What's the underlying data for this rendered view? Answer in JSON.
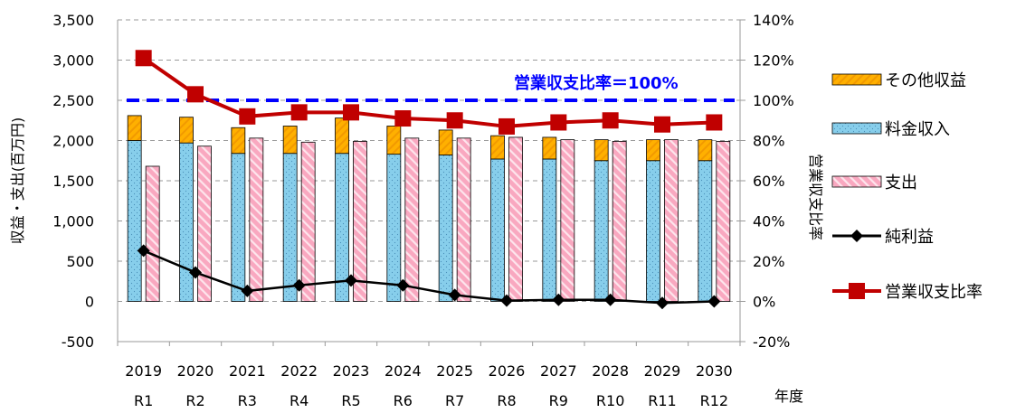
{
  "chart_data": {
    "type": "bar",
    "categories": [
      "2019",
      "2020",
      "2021",
      "2022",
      "2023",
      "2024",
      "2025",
      "2026",
      "2027",
      "2028",
      "2029",
      "2030"
    ],
    "categories_sub": [
      "R1",
      "R2",
      "R3",
      "R4",
      "R5",
      "R6",
      "R7",
      "R8",
      "R9",
      "R10",
      "R11",
      "R12"
    ],
    "xlabel": "年度",
    "ylabel": "収益・支出(百万円)",
    "y2label": "営業収支比率",
    "ylim": [
      -500,
      3500
    ],
    "y2lim": [
      -0.2,
      1.4
    ],
    "yticks": [
      -500,
      0,
      500,
      1000,
      1500,
      2000,
      2500,
      3000,
      3500
    ],
    "y2ticks": [
      -0.2,
      0,
      0.2,
      0.4,
      0.6,
      0.8,
      1.0,
      1.2,
      1.4
    ],
    "ytick_labels": [
      "-500",
      "0",
      "500",
      "1,000",
      "1,500",
      "2,000",
      "2,500",
      "3,000",
      "3,500"
    ],
    "y2tick_labels": [
      "-20%",
      "0%",
      "20%",
      "40%",
      "60%",
      "80%",
      "100%",
      "120%",
      "140%"
    ],
    "grid": "horizontal dashed",
    "legend_position": "right",
    "series": [
      {
        "name": "その他収益",
        "kind": "stacked-bar-top",
        "color": "#FFB000",
        "values": [
          310,
          320,
          320,
          340,
          440,
          350,
          310,
          290,
          270,
          260,
          260,
          260
        ]
      },
      {
        "name": "料金収入",
        "kind": "stacked-bar-base",
        "color": "#87CEEB",
        "values": [
          2000,
          1970,
          1840,
          1840,
          1840,
          1830,
          1820,
          1770,
          1770,
          1750,
          1750,
          1750
        ]
      },
      {
        "name": "支出",
        "kind": "bar",
        "color": "#F9A8C0",
        "values": [
          1680,
          1930,
          2030,
          1980,
          1990,
          2030,
          2030,
          2040,
          2010,
          1990,
          2010,
          1990
        ]
      },
      {
        "name": "純利益",
        "kind": "line",
        "axis": "left",
        "color": "#000000",
        "values": [
          630,
          360,
          130,
          200,
          260,
          200,
          80,
          10,
          20,
          20,
          -20,
          0
        ]
      },
      {
        "name": "営業収支比率",
        "kind": "line",
        "axis": "right",
        "color": "#C00000",
        "values": [
          1.21,
          1.03,
          0.92,
          0.94,
          0.94,
          0.91,
          0.9,
          0.87,
          0.89,
          0.9,
          0.88,
          0.89
        ]
      }
    ],
    "reference_line": {
      "label": "営業収支比率＝100%",
      "value": 1.0,
      "axis": "right",
      "color": "#0000FF"
    }
  }
}
